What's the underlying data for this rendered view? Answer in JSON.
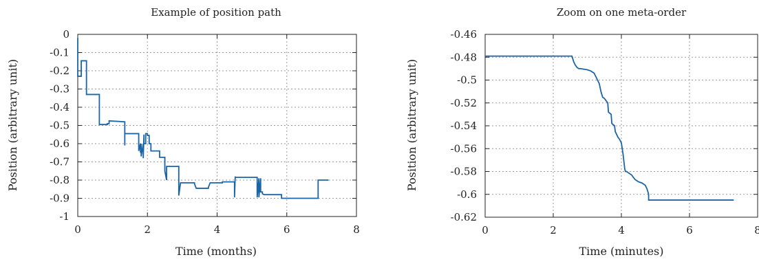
{
  "chart_data": [
    {
      "type": "line",
      "title": "Example of position path",
      "xlabel": "Time (months)",
      "ylabel": "Position (arbitrary unit)",
      "xlim": [
        0,
        8
      ],
      "ylim": [
        -1,
        0
      ],
      "xticks": [
        0,
        2,
        4,
        6,
        8
      ],
      "yticks": [
        0,
        -0.1,
        -0.2,
        -0.3,
        -0.4,
        -0.5,
        -0.6,
        -0.7,
        -0.8,
        -0.9,
        -1
      ],
      "xtick_labels": [
        "0",
        "2",
        "4",
        "6",
        "8"
      ],
      "ytick_labels": [
        "0",
        "-0.1",
        "-0.2",
        "-0.3",
        "-0.4",
        "-0.5",
        "-0.6",
        "-0.7",
        "-0.8",
        "-0.9",
        "-1"
      ],
      "grid": true,
      "series_color": "#1a64a8",
      "series": [
        {
          "x": [
            0,
            0,
            0.02,
            0.02,
            0.1,
            0.1,
            0.2,
            0.2,
            0.25,
            0.25,
            0.62,
            0.62,
            0.85,
            0.85,
            0.9,
            0.9,
            1.35,
            1.35,
            1.35,
            1.35,
            1.75,
            1.75,
            1.8,
            1.8,
            1.82,
            1.82,
            1.88,
            1.88,
            1.9,
            1.9,
            1.95,
            1.95,
            2.0,
            2.0,
            2.05,
            2.05,
            2.1,
            2.1,
            2.35,
            2.35,
            2.5,
            2.5,
            2.55,
            2.55,
            2.6,
            2.6,
            2.9,
            2.9,
            2.95,
            2.95,
            3.35,
            3.35,
            3.4,
            3.4,
            3.75,
            3.75,
            3.8,
            3.8,
            4.15,
            4.15,
            4.5,
            4.5,
            4.52,
            4.52,
            5.15,
            5.15,
            5.2,
            5.2,
            5.25,
            5.25,
            5.3,
            5.3,
            5.35,
            5.35,
            5.85,
            5.85,
            6.9,
            6.9,
            7.2
          ],
          "y": [
            -0.02,
            -0.23,
            -0.23,
            -0.23,
            -0.23,
            -0.145,
            -0.145,
            -0.145,
            -0.145,
            -0.33,
            -0.33,
            -0.495,
            -0.495,
            -0.49,
            -0.49,
            -0.475,
            -0.48,
            -0.545,
            -0.61,
            -0.545,
            -0.545,
            -0.64,
            -0.6,
            -0.65,
            -0.6,
            -0.67,
            -0.6,
            -0.68,
            -0.55,
            -0.6,
            -0.6,
            -0.545,
            -0.545,
            -0.555,
            -0.555,
            -0.6,
            -0.6,
            -0.64,
            -0.64,
            -0.675,
            -0.675,
            -0.75,
            -0.8,
            -0.725,
            -0.725,
            -0.725,
            -0.725,
            -0.885,
            -0.815,
            -0.815,
            -0.815,
            -0.82,
            -0.845,
            -0.845,
            -0.845,
            -0.84,
            -0.815,
            -0.815,
            -0.815,
            -0.81,
            -0.81,
            -0.895,
            -0.78,
            -0.785,
            -0.785,
            -0.895,
            -0.79,
            -0.895,
            -0.79,
            -0.865,
            -0.865,
            -0.875,
            -0.88,
            -0.88,
            -0.88,
            -0.9,
            -0.9,
            -0.8,
            -0.8
          ]
        }
      ]
    },
    {
      "type": "line",
      "title": "Zoom on one meta-order",
      "xlabel": "Time (minutes)",
      "ylabel": "Position (arbitrary unit)",
      "xlim": [
        0,
        8
      ],
      "ylim": [
        -0.62,
        -0.46
      ],
      "xticks": [
        0,
        2,
        4,
        6,
        8
      ],
      "yticks": [
        -0.46,
        -0.48,
        -0.5,
        -0.52,
        -0.54,
        -0.56,
        -0.58,
        -0.6,
        -0.62
      ],
      "xtick_labels": [
        "0",
        "2",
        "4",
        "6",
        "8"
      ],
      "ytick_labels": [
        "-0.46",
        "-0.48",
        "-0.5",
        "-0.52",
        "-0.54",
        "-0.56",
        "-0.58",
        "-0.6",
        "-0.62"
      ],
      "grid": true,
      "series_color": "#1a64a8",
      "series": [
        {
          "x": [
            0,
            2.55,
            2.6,
            2.65,
            2.7,
            2.75,
            2.8,
            3.0,
            3.1,
            3.2,
            3.25,
            3.3,
            3.35,
            3.4,
            3.45,
            3.5,
            3.55,
            3.6,
            3.62,
            3.7,
            3.72,
            3.8,
            3.82,
            3.9,
            3.95,
            4.0,
            4.05,
            4.1,
            4.12,
            4.15,
            4.3,
            4.4,
            4.5,
            4.6,
            4.7,
            4.75,
            4.78,
            4.8,
            4.8,
            7.3
          ],
          "y": [
            -0.479,
            -0.479,
            -0.484,
            -0.487,
            -0.489,
            -0.49,
            -0.49,
            -0.491,
            -0.492,
            -0.494,
            -0.497,
            -0.5,
            -0.503,
            -0.51,
            -0.515,
            -0.516,
            -0.518,
            -0.52,
            -0.528,
            -0.53,
            -0.538,
            -0.54,
            -0.545,
            -0.55,
            -0.552,
            -0.555,
            -0.565,
            -0.578,
            -0.58,
            -0.58,
            -0.583,
            -0.587,
            -0.589,
            -0.59,
            -0.592,
            -0.595,
            -0.598,
            -0.6,
            -0.605,
            -0.605
          ]
        }
      ]
    }
  ]
}
